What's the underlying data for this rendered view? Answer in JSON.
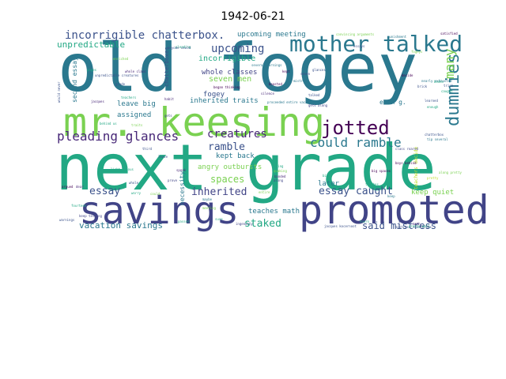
{
  "chart_data": {
    "type": "wordcloud",
    "title": "1942-06-21",
    "background": "#ffffff",
    "colormap": "viridis",
    "words": [
      {
        "text": "old fogey",
        "weight": 1.0,
        "color": "#2a788e"
      },
      {
        "text": "next grade",
        "weight": 0.98,
        "color": "#22a884"
      },
      {
        "text": "mr. keesing",
        "weight": 0.75,
        "color": "#7ad151"
      },
      {
        "text": "promoted",
        "weight": 0.72,
        "color": "#414487"
      },
      {
        "text": "savings",
        "weight": 0.72,
        "color": "#414487"
      },
      {
        "text": "mother talked",
        "weight": 0.48,
        "color": "#2a788e"
      },
      {
        "text": "jotted",
        "weight": 0.4,
        "color": "#440154"
      },
      {
        "text": "pleading glances",
        "weight": 0.3,
        "color": "#482878"
      },
      {
        "text": "could ramble",
        "weight": 0.27,
        "color": "#2a788e"
      },
      {
        "text": "dummies",
        "weight": 0.26,
        "color": "#2a788e"
      },
      {
        "text": "incorrigible chatterbox.",
        "weight": 0.26,
        "color": "#3b528b"
      },
      {
        "text": "upcoming",
        "weight": 0.23,
        "color": "#3b528b"
      },
      {
        "text": "creatures",
        "weight": 0.23,
        "color": "#482878"
      },
      {
        "text": "many",
        "weight": 0.22,
        "color": "#7ad151"
      },
      {
        "text": "inherited",
        "weight": 0.22,
        "color": "#414487"
      },
      {
        "text": "essay caught",
        "weight": 0.2,
        "color": "#3b528b"
      },
      {
        "text": "said mistress",
        "weight": 0.19,
        "color": "#3b528b"
      },
      {
        "text": "essay",
        "weight": 0.18,
        "color": "#3b528b"
      },
      {
        "text": "spaces",
        "weight": 0.18,
        "color": "#7ad151"
      },
      {
        "text": "staked",
        "weight": 0.18,
        "color": "#22a884"
      },
      {
        "text": "vacation savings",
        "weight": 0.17,
        "color": "#2a788e"
      },
      {
        "text": "unpredictable",
        "weight": 0.16,
        "color": "#22a884"
      },
      {
        "text": "incorrigible",
        "weight": 0.15,
        "color": "#22a884"
      },
      {
        "text": "seven men",
        "weight": 0.15,
        "color": "#7ad151"
      },
      {
        "text": "fogey",
        "weight": 0.14,
        "color": "#3b528b"
      },
      {
        "text": "ramble",
        "weight": 0.15,
        "color": "#3b528b"
      },
      {
        "text": "upcoming meeting",
        "weight": 0.13,
        "color": "#2a788e"
      },
      {
        "text": "whole classes",
        "weight": 0.13,
        "color": "#414487"
      },
      {
        "text": "inherited traits",
        "weight": 0.13,
        "color": "#2a788e"
      },
      {
        "text": "angry outbursts",
        "weight": 0.13,
        "color": "#7ad151"
      },
      {
        "text": "leave big",
        "weight": 0.13,
        "color": "#2a788e"
      },
      {
        "text": "assigned",
        "weight": 0.13,
        "color": "#2a788e"
      },
      {
        "text": "teaches math",
        "weight": 0.12,
        "color": "#2a788e"
      },
      {
        "text": "kept back",
        "weight": 0.12,
        "color": "#2a788e"
      },
      {
        "text": "later",
        "weight": 0.12,
        "color": "#2a788e"
      },
      {
        "text": "keep quiet",
        "weight": 0.11,
        "color": "#7ad151"
      },
      {
        "text": "necessity",
        "weight": 0.11,
        "color": "#2a788e"
      },
      {
        "text": "second essay",
        "weight": 0.11,
        "color": "#2a788e"
      },
      {
        "text": "even g.",
        "weight": 0.11,
        "color": "#2a788e"
      },
      {
        "text": "chatterboxes",
        "weight": 0.09,
        "color": "#3b528b"
      },
      {
        "text": "teachers decide",
        "weight": 0.08,
        "color": "#bddf26"
      },
      {
        "text": "mistress chatterbox",
        "weight": 0.05,
        "color": "#3b528b"
      },
      {
        "text": "began thinking",
        "weight": 0.05,
        "color": "#440154"
      },
      {
        "text": "several warnings",
        "weight": 0.05,
        "color": "#2a788e"
      },
      {
        "text": "convincing arguments",
        "weight": 0.05,
        "color": "#7ad151"
      },
      {
        "text": "proceeded entire vacation",
        "weight": 0.05,
        "color": "#2a788e"
      },
      {
        "text": "big spaces",
        "weight": 0.05,
        "color": "#440154"
      },
      {
        "text": "keep telling",
        "weight": 0.05,
        "color": "#414487"
      },
      {
        "text": "pretty well",
        "weight": 0.05,
        "color": "#22a884"
      },
      {
        "text": "along pretty",
        "weight": 0.05,
        "color": "#7ad151"
      },
      {
        "text": "class roared",
        "weight": 0.05,
        "color": "#414487"
      },
      {
        "text": "teachers",
        "weight": 0.05,
        "color": "#22a884"
      },
      {
        "text": "unpredictable creatures",
        "weight": 0.05,
        "color": "#3b528b"
      },
      {
        "text": "punishment",
        "weight": 0.05,
        "color": "#2a788e"
      },
      {
        "text": "satisfied",
        "weight": 0.05,
        "color": "#440154"
      },
      {
        "text": "pleading",
        "weight": 0.05,
        "color": "#22a884"
      },
      {
        "text": "jacques",
        "weight": 0.05,
        "color": "#482878"
      },
      {
        "text": "enriched",
        "weight": 0.05,
        "color": "#7ad151"
      },
      {
        "text": "nearly exhausted",
        "weight": 0.05,
        "color": "#2a788e"
      },
      {
        "text": "decide",
        "weight": 0.05,
        "color": "#440154"
      },
      {
        "text": "brick",
        "weight": 0.05,
        "color": "#3b528b"
      },
      {
        "text": "caught",
        "weight": 0.05,
        "color": "#22a884"
      },
      {
        "text": "boys behind",
        "weight": 0.05,
        "color": "#440154"
      },
      {
        "text": "learned",
        "weight": 0.05,
        "color": "#3b528b"
      },
      {
        "text": "habit",
        "weight": 0.05,
        "color": "#482878"
      },
      {
        "text": "mistress",
        "weight": 0.05,
        "color": "#2a788e"
      },
      {
        "text": "seven",
        "weight": 0.05,
        "color": "#414487"
      },
      {
        "text": "warnings",
        "weight": 0.05,
        "color": "#3b528b"
      },
      {
        "text": "worry",
        "weight": 0.05,
        "color": "#22a884"
      },
      {
        "text": "along",
        "weight": 0.05,
        "color": "#414487"
      },
      {
        "text": "third",
        "weight": 0.05,
        "color": "#3b528b"
      },
      {
        "text": "behind us",
        "weight": 0.05,
        "color": "#22a884"
      },
      {
        "text": "quaking",
        "weight": 0.05,
        "color": "#7ad151"
      },
      {
        "text": "banded",
        "weight": 0.05,
        "color": "#482878"
      },
      {
        "text": "pages",
        "weight": 0.05,
        "color": "#22a884"
      },
      {
        "text": "grade",
        "weight": 0.05,
        "color": "#3b528b"
      },
      {
        "text": "math",
        "weight": 0.05,
        "color": "#482878"
      },
      {
        "text": "enough",
        "weight": 0.05,
        "color": "#22a884"
      },
      {
        "text": "tip several",
        "weight": 0.05,
        "color": "#2a788e"
      },
      {
        "text": "fourteen",
        "weight": 0.05,
        "color": "#22a884"
      },
      {
        "text": "ingenuity",
        "weight": 0.05,
        "color": "#414487"
      },
      {
        "text": "boasted",
        "weight": 0.05,
        "color": "#440154"
      },
      {
        "text": "pretty",
        "weight": 0.05,
        "color": "#bddf26"
      },
      {
        "text": "kept",
        "weight": 0.05,
        "color": "#440154"
      },
      {
        "text": "chatterbox",
        "weight": 0.05,
        "color": "#3b528b"
      },
      {
        "text": "traits",
        "weight": 0.05,
        "color": "#7ad151"
      },
      {
        "text": "light-aneous",
        "weight": 0.05,
        "color": "#22a884"
      },
      {
        "text": "jacques kocernoot",
        "weight": 0.05,
        "color": "#3b528b"
      },
      {
        "text": "anyone could",
        "weight": 0.05,
        "color": "#3b528b"
      },
      {
        "text": "passed",
        "weight": 0.05,
        "color": "#22a884"
      },
      {
        "text": "whole",
        "weight": 0.05,
        "color": "#3b528b"
      },
      {
        "text": "could",
        "weight": 0.05,
        "color": "#7ad151"
      },
      {
        "text": "silence",
        "weight": 0.05,
        "color": "#482878"
      },
      {
        "text": "saying",
        "weight": 0.05,
        "color": "#22a884"
      },
      {
        "text": "prove",
        "weight": 0.05,
        "color": "#414487"
      },
      {
        "text": "maybe",
        "weight": 0.05,
        "color": "#2a788e"
      },
      {
        "text": "speak",
        "weight": 0.05,
        "color": "#482878"
      },
      {
        "text": "sure",
        "weight": 0.05,
        "color": "#22a884"
      },
      {
        "text": "glances",
        "weight": 0.05,
        "color": "#3b528b"
      },
      {
        "text": "essays",
        "weight": 0.05,
        "color": "#3b528b"
      },
      {
        "text": "fogeys",
        "weight": 0.05,
        "color": "#7ad151"
      },
      {
        "text": "argued",
        "weight": 0.05,
        "color": "#440154"
      },
      {
        "text": "dear",
        "weight": 0.05,
        "color": "#482878"
      },
      {
        "text": "would never",
        "weight": 0.05,
        "color": "#3b528b"
      },
      {
        "text": "hours",
        "weight": 0.05,
        "color": "#22a884"
      },
      {
        "text": "gets along",
        "weight": 0.05,
        "color": "#414487"
      },
      {
        "text": "keep",
        "weight": 0.05,
        "color": "#2a788e"
      },
      {
        "text": "talked",
        "weight": 0.05,
        "color": "#3b528b"
      },
      {
        "text": "leave",
        "weight": 0.05,
        "color": "#3b528b"
      },
      {
        "text": "teaches",
        "weight": 0.05,
        "color": "#22a884"
      },
      {
        "text": "meeting",
        "weight": 0.05,
        "color": "#7ad151"
      },
      {
        "text": "whole class",
        "weight": 0.05,
        "color": "#482878"
      },
      {
        "text": "big",
        "weight": 0.05,
        "color": "#22a884"
      },
      {
        "text": "entire",
        "weight": 0.05,
        "color": "#7ad151"
      },
      {
        "text": "gets",
        "weight": 0.05,
        "color": "#414487"
      },
      {
        "text": "books",
        "weight": 0.05,
        "color": "#22a884"
      },
      {
        "text": "trick",
        "weight": 0.05,
        "color": "#3b528b"
      }
    ]
  }
}
